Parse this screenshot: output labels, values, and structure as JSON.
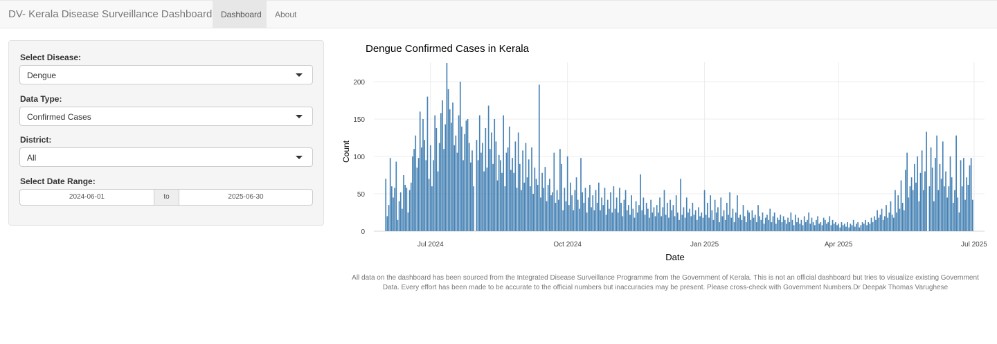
{
  "nav": {
    "brand": "DV- Kerala Disease Surveillance Dashboard",
    "tabs": [
      {
        "label": "Dashboard",
        "active": true
      },
      {
        "label": "About",
        "active": false
      }
    ]
  },
  "sidebar": {
    "disease_label": "Select Disease:",
    "disease_value": "Dengue",
    "datatype_label": "Data Type:",
    "datatype_value": "Confirmed Cases",
    "district_label": "District:",
    "district_value": "All",
    "daterange_label": "Select Date Range:",
    "date_start": "2024-06-01",
    "date_sep": "to",
    "date_end": "2025-06-30"
  },
  "chart_data": {
    "type": "bar",
    "title": "Dengue Confirmed Cases in Kerala",
    "xlabel": "Date",
    "ylabel": "Count",
    "ylim": [
      0,
      225
    ],
    "yticks": [
      0,
      50,
      100,
      150,
      200
    ],
    "xticks": [
      "Jul 2024",
      "Oct 2024",
      "Jan 2025",
      "Apr 2025",
      "Jul 2025"
    ],
    "xtick_dates": [
      "2024-07-01",
      "2024-10-01",
      "2025-01-01",
      "2025-04-01",
      "2025-07-01"
    ],
    "x_start": "2024-06-01",
    "x_end": "2025-06-30",
    "bar_color": "#4682b4",
    "grid": true,
    "series": [
      {
        "monthly_segments": [
          {
            "month": "2024-06",
            "values": [
              70,
              20,
              35,
              98,
              60,
              45,
              58,
              93,
              15,
              40,
              52,
              30,
              75,
              62,
              58,
              25,
              55,
              65,
              100,
              110,
              128,
              85,
              98,
              160,
              112,
              150,
              122,
              95,
              180,
              70
            ]
          },
          {
            "month": "2024-07",
            "values": [
              115,
              60,
              95,
              155,
              138,
              80,
              118,
              158,
              175,
              110,
              143,
              225,
              190,
              163,
              145,
              172,
              115,
              128,
              105,
              155,
              200,
              140,
              95,
              130,
              148,
              150,
              118,
              92,
              108,
              60
            ]
          },
          {
            "month": "2024-08",
            "values": [
              122,
              95,
              155,
              105,
              118,
              80,
              138,
              85,
              168,
              110,
              132,
              90,
              150,
              120,
              68,
              102,
              95,
              78,
              155,
              60,
              105,
              112,
              140,
              82,
              98,
              78,
              120,
              58,
              132,
              90,
              55
            ]
          },
          {
            "month": "2024-09",
            "values": [
              108,
              65,
              118,
              72,
              96,
              60,
              112,
              50,
              85,
              70,
              62,
              196,
              45,
              78,
              58,
              86,
              40,
              62,
              70,
              48,
              52,
              105,
              38,
              55,
              42,
              110,
              90,
              28,
              58,
              40
            ]
          },
          {
            "month": "2024-10",
            "values": [
              100,
              35,
              65,
              48,
              28,
              55,
              72,
              42,
              30,
              98,
              52,
              38,
              58,
              25,
              45,
              62,
              32,
              48,
              28,
              55,
              38,
              65,
              28,
              45,
              35,
              58,
              22,
              42,
              30,
              52,
              25
            ]
          },
          {
            "month": "2024-11",
            "values": [
              60,
              30,
              45,
              25,
              58,
              38,
              20,
              42,
              55,
              28,
              35,
              22,
              48,
              30,
              18,
              40,
              25,
              35,
              76,
              28,
              45,
              22,
              38,
              30,
              18,
              42,
              25,
              32,
              20,
              35
            ]
          },
          {
            "month": "2024-12",
            "values": [
              25,
              45,
              20,
              32,
              55,
              22,
              38,
              18,
              42,
              28,
              35,
              20,
              48,
              25,
              15,
              70,
              22,
              32,
              18,
              45,
              25,
              30,
              20,
              38,
              22,
              28,
              15,
              32,
              20,
              25,
              18
            ]
          },
          {
            "month": "2025-01",
            "values": [
              55,
              22,
              38,
              18,
              48,
              28,
              15,
              42,
              25,
              32,
              12,
              45,
              20,
              28,
              15,
              38,
              22,
              52,
              18,
              30,
              12,
              25,
              48,
              18,
              22,
              15,
              35,
              20,
              12,
              28,
              25
            ]
          },
          {
            "month": "2025-02",
            "values": [
              15,
              28,
              18,
              22,
              12,
              35,
              20,
              15,
              25,
              10,
              18,
              22,
              15,
              30,
              12,
              20,
              25,
              10,
              18,
              15,
              22,
              12,
              20,
              15,
              10,
              18,
              12,
              25
            ]
          },
          {
            "month": "2025-03",
            "values": [
              15,
              8,
              22,
              12,
              18,
              10,
              15,
              8,
              20,
              12,
              15,
              25,
              10,
              18,
              12,
              8,
              15,
              20,
              10,
              12,
              8,
              18,
              15,
              10,
              12,
              20,
              8,
              15,
              10,
              12,
              8
            ]
          },
          {
            "month": "2025-04",
            "values": [
              10,
              5,
              12,
              8,
              10,
              6,
              12,
              5,
              10,
              8,
              15,
              6,
              10,
              12,
              5,
              8,
              12,
              10,
              15,
              8,
              12,
              10,
              18,
              12,
              20,
              15,
              28,
              18,
              22,
              30
            ]
          },
          {
            "month": "2025-05",
            "values": [
              15,
              20,
              35,
              18,
              25,
              40,
              22,
              18,
              55,
              25,
              48,
              30,
              68,
              38,
              28,
              82,
              105,
              45,
              60,
              72,
              55,
              90,
              65,
              100,
              40,
              78,
              108,
              55,
              80,
              133
            ]
          },
          {
            "month": "2025-06",
            "values": [
              60,
              112,
              85,
              40,
              98,
              128,
              55,
              90,
              70,
              120,
              60,
              80,
              45,
              60,
              100,
              72,
              38,
              55,
              128,
              45,
              25,
              95,
              60,
              98,
              42,
              72,
              62,
              88,
              98,
              42
            ]
          }
        ]
      }
    ]
  },
  "footnote": "All data on the dashboard has been sourced from the Integrated Disease Surveillance Programme from the Government of Kerala. This is not an official dashboard but tries to visualize existing Government Data. Every effort has been made to be accurate to the official numbers but inaccuracies may be present. Please cross-check with Government Numbers.Dr Deepak Thomas Varughese"
}
